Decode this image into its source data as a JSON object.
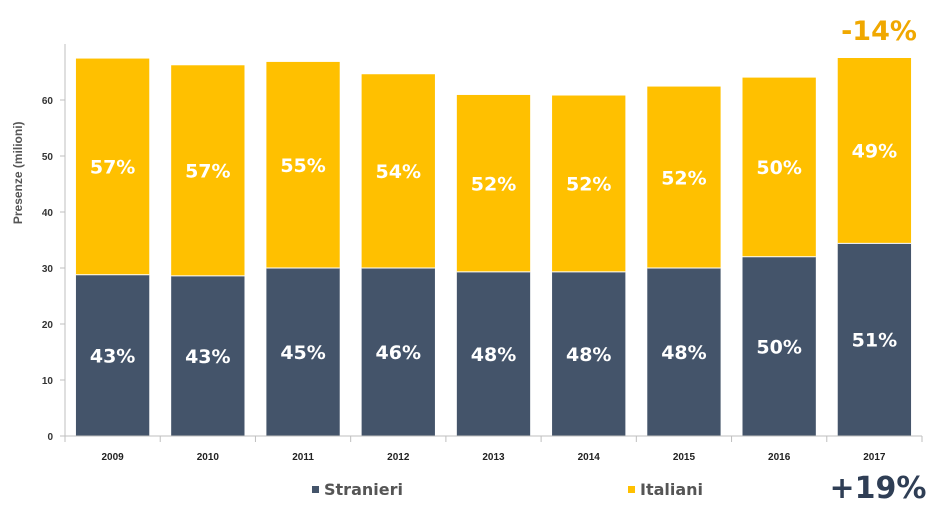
{
  "chart_data": {
    "type": "bar",
    "stacked": true,
    "categories": [
      "2009",
      "2010",
      "2011",
      "2012",
      "2013",
      "2014",
      "2015",
      "2016",
      "2017"
    ],
    "series": [
      {
        "name": "Stranieri",
        "color": "#44546A",
        "values": [
          28.8,
          28.6,
          30.0,
          30.0,
          29.3,
          29.3,
          30.0,
          32.0,
          34.4
        ],
        "labels": [
          "43%",
          "43%",
          "45%",
          "46%",
          "48%",
          "48%",
          "48%",
          "50%",
          "51%"
        ]
      },
      {
        "name": "Italiani",
        "color": "#FFC000",
        "values": [
          38.6,
          37.6,
          36.8,
          34.6,
          31.6,
          31.5,
          32.4,
          32.0,
          33.1
        ],
        "labels": [
          "57%",
          "57%",
          "55%",
          "54%",
          "52%",
          "52%",
          "52%",
          "50%",
          "49%"
        ]
      }
    ],
    "ylabel": "Presenze (milioni)",
    "xlabel": "",
    "ylim": [
      0,
      70
    ],
    "yticks": [
      0,
      10,
      20,
      30,
      40,
      50,
      60
    ],
    "grid": false,
    "legend_position": "bottom",
    "annotations": {
      "top_right": {
        "text": "-14%",
        "color": "#F0A800"
      },
      "bottom_right": {
        "text": "+19%",
        "color": "#2F3E55"
      }
    }
  }
}
